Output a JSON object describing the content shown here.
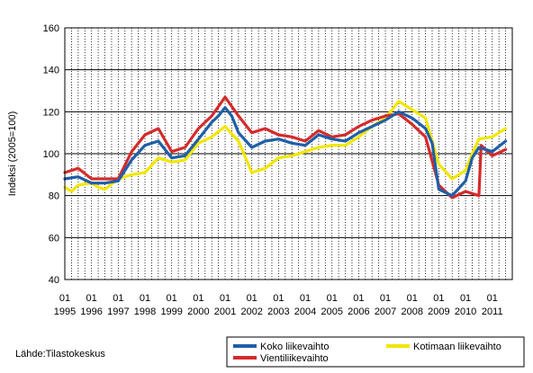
{
  "chart_data": {
    "type": "line",
    "title": "",
    "xlabel": "",
    "ylabel": "Indeksi (2005=100)",
    "ylim": [
      40,
      160
    ],
    "yticks": [
      "40",
      "60",
      "80",
      "100",
      "120",
      "140",
      "160"
    ],
    "x_start": "1995-01",
    "x_end": "2011-09",
    "grid": "horizontal solid, vertical dotted at every quarter",
    "legend_position": "bottom-right",
    "x_tick_labels": [
      {
        "month": "01",
        "year": "1995"
      },
      {
        "month": "01",
        "year": "1996"
      },
      {
        "month": "01",
        "year": "1997"
      },
      {
        "month": "01",
        "year": "1998"
      },
      {
        "month": "01",
        "year": "1999"
      },
      {
        "month": "01",
        "year": "2000"
      },
      {
        "month": "01",
        "year": "2001"
      },
      {
        "month": "01",
        "year": "2002"
      },
      {
        "month": "01",
        "year": "2003"
      },
      {
        "month": "01",
        "year": "2004"
      },
      {
        "month": "01",
        "year": "2005"
      },
      {
        "month": "01",
        "year": "2006"
      },
      {
        "month": "01",
        "year": "2007"
      },
      {
        "month": "01",
        "year": "2008"
      },
      {
        "month": "01",
        "year": "2009"
      },
      {
        "month": "01",
        "year": "2010"
      },
      {
        "month": "01",
        "year": "2011"
      }
    ],
    "series": [
      {
        "name": "Koko liikevaihto",
        "color": "#1f5fa8",
        "points": [
          [
            "1995-01",
            88
          ],
          [
            "1995-07",
            89
          ],
          [
            "1996-01",
            86
          ],
          [
            "1996-07",
            86
          ],
          [
            "1997-01",
            87
          ],
          [
            "1997-07",
            97
          ],
          [
            "1998-01",
            104
          ],
          [
            "1998-07",
            106
          ],
          [
            "1999-01",
            98
          ],
          [
            "1999-07",
            99
          ],
          [
            "2000-01",
            107
          ],
          [
            "2000-07",
            115
          ],
          [
            "2000-10",
            118
          ],
          [
            "2001-01",
            122
          ],
          [
            "2001-04",
            118
          ],
          [
            "2001-07",
            110
          ],
          [
            "2002-01",
            103
          ],
          [
            "2002-07",
            106
          ],
          [
            "2003-01",
            107
          ],
          [
            "2003-07",
            105
          ],
          [
            "2004-01",
            104
          ],
          [
            "2004-07",
            109
          ],
          [
            "2005-01",
            107
          ],
          [
            "2005-07",
            106
          ],
          [
            "2006-01",
            110
          ],
          [
            "2006-07",
            113
          ],
          [
            "2007-01",
            116
          ],
          [
            "2007-07",
            120
          ],
          [
            "2008-01",
            117
          ],
          [
            "2008-07",
            112
          ],
          [
            "2008-10",
            105
          ],
          [
            "2009-01",
            83
          ],
          [
            "2009-07",
            80
          ],
          [
            "2010-01",
            87
          ],
          [
            "2010-04",
            98
          ],
          [
            "2010-07",
            103
          ],
          [
            "2011-01",
            101
          ],
          [
            "2011-07",
            106
          ]
        ]
      },
      {
        "name": "Kotimaan liikevaihto",
        "color": "#f2e600",
        "points": [
          [
            "1995-01",
            84
          ],
          [
            "1995-04",
            82
          ],
          [
            "1995-07",
            85
          ],
          [
            "1996-01",
            86
          ],
          [
            "1996-04",
            84
          ],
          [
            "1996-07",
            83
          ],
          [
            "1997-01",
            88
          ],
          [
            "1997-07",
            90
          ],
          [
            "1998-01",
            91
          ],
          [
            "1998-07",
            98
          ],
          [
            "1999-01",
            96
          ],
          [
            "1999-07",
            97
          ],
          [
            "2000-01",
            105
          ],
          [
            "2000-07",
            108
          ],
          [
            "2001-01",
            113
          ],
          [
            "2001-07",
            106
          ],
          [
            "2002-01",
            91
          ],
          [
            "2002-07",
            93
          ],
          [
            "2003-01",
            98
          ],
          [
            "2003-07",
            99
          ],
          [
            "2004-01",
            101
          ],
          [
            "2004-07",
            103
          ],
          [
            "2005-01",
            104
          ],
          [
            "2005-07",
            104
          ],
          [
            "2006-01",
            108
          ],
          [
            "2006-07",
            113
          ],
          [
            "2007-01",
            117
          ],
          [
            "2007-07",
            125
          ],
          [
            "2008-01",
            121
          ],
          [
            "2008-07",
            117
          ],
          [
            "2009-01",
            95
          ],
          [
            "2009-07",
            88
          ],
          [
            "2010-01",
            92
          ],
          [
            "2010-04",
            100
          ],
          [
            "2010-07",
            107
          ],
          [
            "2011-01",
            108
          ],
          [
            "2011-07",
            112
          ]
        ]
      },
      {
        "name": "Vientiliikevaihto",
        "color": "#d42b2b",
        "points": [
          [
            "1995-01",
            91
          ],
          [
            "1995-07",
            93
          ],
          [
            "1996-01",
            88
          ],
          [
            "1996-07",
            88
          ],
          [
            "1997-01",
            88
          ],
          [
            "1997-07",
            101
          ],
          [
            "1998-01",
            109
          ],
          [
            "1998-07",
            112
          ],
          [
            "1999-01",
            101
          ],
          [
            "1999-07",
            103
          ],
          [
            "2000-01",
            112
          ],
          [
            "2000-07",
            118
          ],
          [
            "2001-01",
            127
          ],
          [
            "2001-07",
            118
          ],
          [
            "2002-01",
            110
          ],
          [
            "2002-07",
            112
          ],
          [
            "2003-01",
            109
          ],
          [
            "2003-07",
            108
          ],
          [
            "2004-01",
            106
          ],
          [
            "2004-07",
            111
          ],
          [
            "2005-01",
            108
          ],
          [
            "2005-07",
            109
          ],
          [
            "2006-01",
            113
          ],
          [
            "2006-07",
            116
          ],
          [
            "2007-01",
            118
          ],
          [
            "2007-07",
            119
          ],
          [
            "2008-01",
            114
          ],
          [
            "2008-07",
            108
          ],
          [
            "2009-01",
            85
          ],
          [
            "2009-07",
            79
          ],
          [
            "2010-01",
            82
          ],
          [
            "2010-07",
            80
          ],
          [
            "2010-08",
            104
          ],
          [
            "2011-01",
            99
          ],
          [
            "2011-07",
            102
          ]
        ]
      }
    ]
  },
  "legend": {
    "items": [
      {
        "label": "Koko liikevaihto",
        "color": "#1f5fa8"
      },
      {
        "label": "Kotimaan liikevaihto",
        "color": "#f2e600"
      },
      {
        "label": "Vientiliikevaihto",
        "color": "#d42b2b"
      }
    ]
  },
  "source": "Lähde:Tilastokeskus"
}
